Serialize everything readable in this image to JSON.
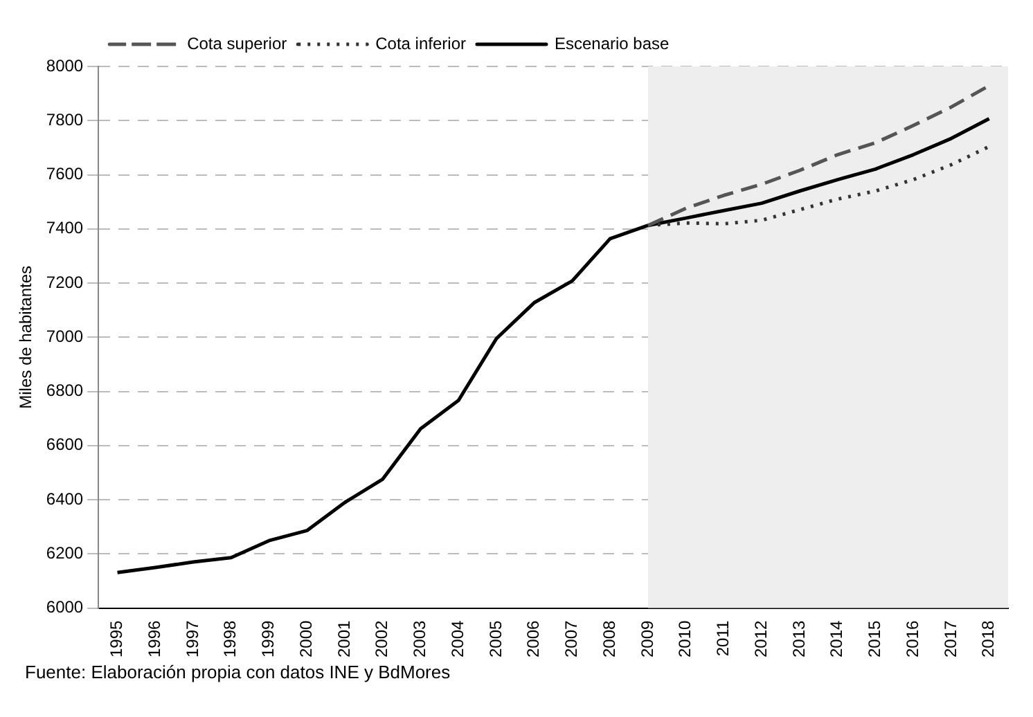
{
  "chart_data": {
    "type": "line",
    "ylabel": "Miles de habitantes",
    "categories": [
      "1995",
      "1996",
      "1997",
      "1998",
      "1999",
      "2000",
      "2001",
      "2002",
      "2003",
      "2004",
      "2005",
      "2006",
      "2007",
      "2008",
      "2009",
      "2010",
      "2011",
      "2012",
      "2013",
      "2014",
      "2015",
      "2016",
      "2017",
      "2018"
    ],
    "series": [
      {
        "name": "Cota superior",
        "color": "#555555",
        "line_style": "dashed",
        "values": [
          null,
          null,
          null,
          null,
          null,
          null,
          null,
          null,
          null,
          null,
          null,
          null,
          null,
          null,
          7413,
          7476,
          7524,
          7565,
          7616,
          7674,
          7718,
          7782,
          7850,
          7929
        ]
      },
      {
        "name": "Cota inferior",
        "color": "#333333",
        "line_style": "dotted",
        "values": [
          null,
          null,
          null,
          null,
          null,
          null,
          null,
          null,
          null,
          null,
          null,
          null,
          null,
          null,
          7413,
          7422,
          7419,
          7432,
          7471,
          7510,
          7540,
          7582,
          7637,
          7704
        ]
      },
      {
        "name": "Escenario base",
        "color": "#000000",
        "line_style": "solid",
        "values": [
          6131,
          6150,
          6170,
          6186,
          6249,
          6286,
          6390,
          6476,
          6662,
          6767,
          6995,
          7128,
          7208,
          7364,
          7413,
          7440,
          7468,
          7495,
          7540,
          7582,
          7621,
          7674,
          7734,
          7807
        ]
      }
    ],
    "ylim": [
      6000,
      8000
    ],
    "yticks": [
      6000,
      6200,
      6400,
      6600,
      6800,
      7000,
      7200,
      7400,
      7600,
      7800,
      8000
    ],
    "grid": "y",
    "legend": "top left",
    "marker": "none",
    "bands": [
      {
        "axis": "x",
        "from": "2009",
        "to": "2018",
        "color": "#eeeeee"
      }
    ],
    "annotations": [
      "Fuente: Elaboración propia con datos INE y BdMores"
    ]
  }
}
